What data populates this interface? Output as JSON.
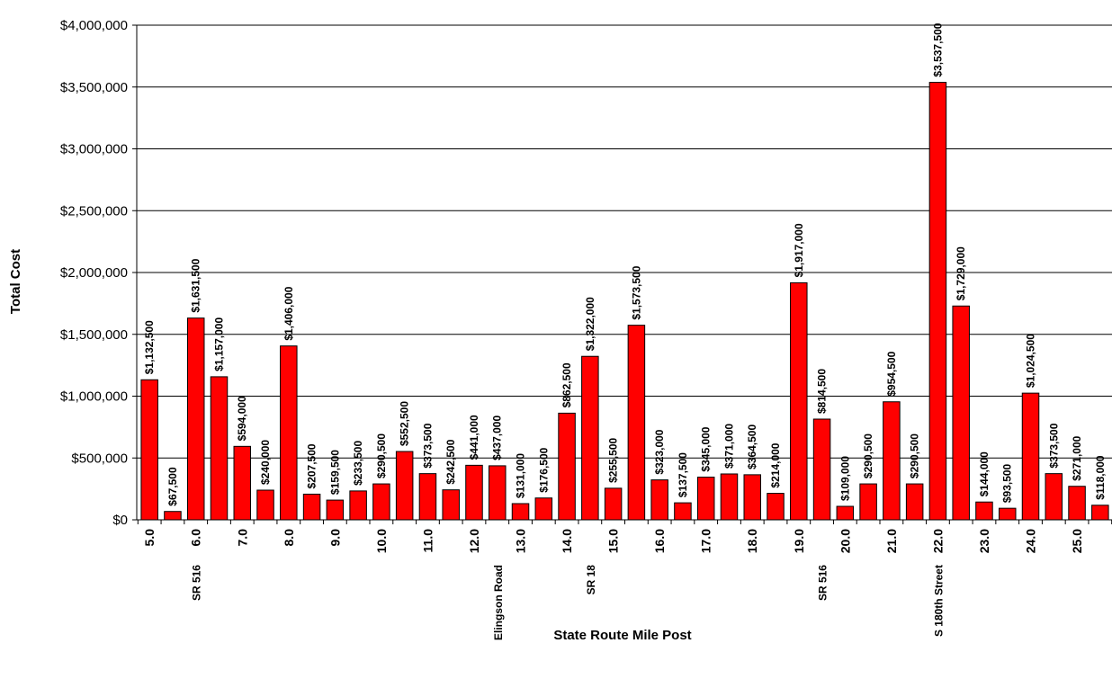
{
  "chart_data": {
    "type": "bar",
    "title": "",
    "xlabel": "State Route Mile Post",
    "ylabel": "Total Cost",
    "ylim": [
      0,
      4000000
    ],
    "ytick_labels": [
      "$0",
      "$500,000",
      "$1,000,000",
      "$1,500,000",
      "$2,000,000",
      "$2,500,000",
      "$3,000,000",
      "$3,500,000",
      "$4,000,000"
    ],
    "grid": "horizontal",
    "legend": "none",
    "bar_color": "#ff0000",
    "bar_edge_color": "#000000",
    "categories": [
      "5.0",
      "5.5",
      "6.0",
      "6.5",
      "7.0",
      "7.5",
      "8.0",
      "8.5",
      "9.0",
      "9.5",
      "10.0",
      "10.5",
      "11.0",
      "11.5",
      "12.0",
      "12.5",
      "13.0",
      "13.5",
      "14.0",
      "14.5",
      "15.0",
      "15.5",
      "16.0",
      "16.5",
      "17.0",
      "17.5",
      "18.0",
      "18.5",
      "19.0",
      "19.5",
      "20.0",
      "20.5",
      "21.0",
      "21.5",
      "22.0",
      "22.5",
      "23.0",
      "23.5",
      "24.0",
      "24.5",
      "25.0",
      "25.5"
    ],
    "tick_labels": [
      "5.0",
      "",
      "6.0",
      "",
      "7.0",
      "",
      "8.0",
      "",
      "9.0",
      "",
      "10.0",
      "",
      "11.0",
      "",
      "12.0",
      "",
      "13.0",
      "",
      "14.0",
      "",
      "15.0",
      "",
      "16.0",
      "",
      "17.0",
      "",
      "18.0",
      "",
      "19.0",
      "",
      "20.0",
      "",
      "21.0",
      "",
      "22.0",
      "",
      "23.0",
      "",
      "24.0",
      "",
      "25.0",
      ""
    ],
    "values": [
      1132500,
      67500,
      1631500,
      1157000,
      594000,
      240000,
      1406000,
      207500,
      159500,
      233500,
      290500,
      552500,
      373500,
      242500,
      441000,
      437000,
      131000,
      176500,
      862500,
      1322000,
      255500,
      1573500,
      323000,
      137500,
      345000,
      371000,
      364500,
      214000,
      1917000,
      814500,
      109000,
      290500,
      954500,
      290500,
      3537500,
      1729000,
      144000,
      93500,
      1024500,
      373500,
      271000,
      118000
    ],
    "data_labels": [
      "$1,132,500",
      "$67,500",
      "$1,631,500",
      "$1,157,000",
      "$594,000",
      "$240,000",
      "$1,406,000",
      "$207,500",
      "$159,500",
      "$233,500",
      "$290,500",
      "$552,500",
      "$373,500",
      "$242,500",
      "$441,000",
      "$437,000",
      "$131,000",
      "$176,500",
      "$862,500",
      "$1,322,000",
      "$255,500",
      "$1,573,500",
      "$323,000",
      "$137,500",
      "$345,000",
      "$371,000",
      "$364,500",
      "$214,000",
      "$1,917,000",
      "$814,500",
      "$109,000",
      "$290,500",
      "$954,500",
      "$290,500",
      "$3,537,500",
      "$1,729,000",
      "$144,000",
      "$93,500",
      "$1,024,500",
      "$373,500",
      "$271,000",
      "$118,000"
    ],
    "annotations": [
      {
        "text": "SR 516",
        "at_category": "6.0"
      },
      {
        "text": "Elingson Road",
        "at_category": "12.5"
      },
      {
        "text": "SR 18",
        "at_category": "14.5"
      },
      {
        "text": "SR 516",
        "at_category": "19.5"
      },
      {
        "text": "S 180th Street",
        "at_category": "22.0"
      }
    ]
  }
}
